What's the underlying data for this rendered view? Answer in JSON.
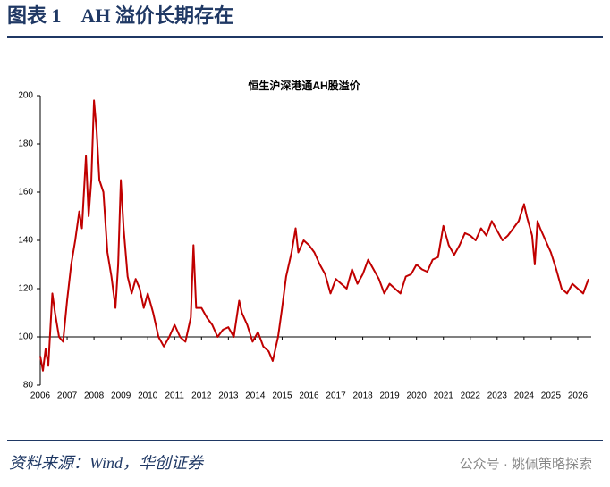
{
  "header": {
    "title": "图表 1　AH 溢价长期存在"
  },
  "chart_data": {
    "type": "line",
    "title": "恒生沪深港通AH股溢价",
    "color": "#c00000",
    "x": [
      2006.0,
      2006.1,
      2006.2,
      2006.3,
      2006.45,
      2006.55,
      2006.7,
      2006.85,
      2007.0,
      2007.15,
      2007.3,
      2007.45,
      2007.55,
      2007.7,
      2007.8,
      2007.9,
      2008.0,
      2008.1,
      2008.2,
      2008.35,
      2008.5,
      2008.65,
      2008.8,
      2008.9,
      2009.0,
      2009.1,
      2009.25,
      2009.4,
      2009.55,
      2009.7,
      2009.85,
      2010.0,
      2010.2,
      2010.4,
      2010.6,
      2010.8,
      2011.0,
      2011.2,
      2011.4,
      2011.6,
      2011.7,
      2011.8,
      2012.0,
      2012.2,
      2012.4,
      2012.6,
      2012.8,
      2013.0,
      2013.2,
      2013.4,
      2013.5,
      2013.7,
      2013.9,
      2014.1,
      2014.3,
      2014.5,
      2014.65,
      2014.85,
      2015.0,
      2015.15,
      2015.35,
      2015.5,
      2015.6,
      2015.8,
      2016.0,
      2016.2,
      2016.4,
      2016.6,
      2016.8,
      2017.0,
      2017.2,
      2017.4,
      2017.6,
      2017.8,
      2018.0,
      2018.2,
      2018.4,
      2018.6,
      2018.8,
      2019.0,
      2019.2,
      2019.4,
      2019.6,
      2019.8,
      2020.0,
      2020.2,
      2020.4,
      2020.6,
      2020.8,
      2021.0,
      2021.2,
      2021.4,
      2021.6,
      2021.8,
      2022.0,
      2022.2,
      2022.4,
      2022.6,
      2022.8,
      2023.0,
      2023.2,
      2023.4,
      2023.6,
      2023.8,
      2024.0,
      2024.1,
      2024.3,
      2024.4,
      2024.5,
      2024.6,
      2024.8,
      2025.0,
      2025.2,
      2025.4,
      2025.6,
      2025.8,
      2026.0,
      2026.2,
      2026.4
    ],
    "values": [
      92,
      86,
      95,
      88,
      118,
      110,
      100,
      98,
      115,
      130,
      140,
      152,
      145,
      175,
      150,
      165,
      198,
      185,
      165,
      160,
      135,
      125,
      112,
      130,
      165,
      145,
      125,
      118,
      124,
      120,
      112,
      118,
      110,
      100,
      96,
      100,
      105,
      100,
      98,
      108,
      138,
      112,
      112,
      108,
      105,
      100,
      103,
      104,
      100,
      115,
      110,
      105,
      98,
      102,
      96,
      94,
      90,
      100,
      112,
      125,
      135,
      145,
      135,
      140,
      138,
      135,
      130,
      126,
      118,
      124,
      122,
      120,
      128,
      122,
      126,
      132,
      128,
      124,
      118,
      122,
      120,
      118,
      125,
      126,
      130,
      128,
      127,
      132,
      133,
      146,
      138,
      134,
      138,
      143,
      142,
      140,
      145,
      142,
      148,
      144,
      140,
      142,
      145,
      148,
      155,
      150,
      142,
      130,
      148,
      145,
      140,
      135,
      128,
      120,
      118,
      122,
      120,
      118,
      124
    ],
    "xlim": [
      2006,
      2026.5
    ],
    "xticks": [
      2006,
      2007,
      2008,
      2009,
      2010,
      2011,
      2012,
      2013,
      2014,
      2015,
      2016,
      2017,
      2018,
      2019,
      2020,
      2021,
      2022,
      2023,
      2024,
      2025,
      2026
    ],
    "ylim": [
      80,
      200
    ],
    "yticks": [
      80,
      100,
      120,
      140,
      160,
      180,
      200
    ],
    "grid": false
  },
  "footer": {
    "source": "资料来源：Wind，华创证券",
    "watermark": "公众号 · 姚佩策略探索"
  }
}
